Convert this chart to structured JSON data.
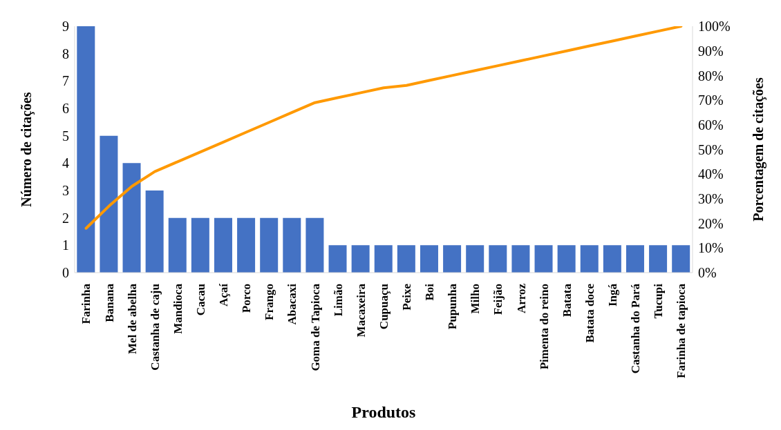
{
  "chart_data": {
    "type": "bar",
    "xlabel": "Produtos",
    "ylabel": "Número de citações",
    "y2label": "Porcentagem de citações",
    "categories": [
      "Farinha",
      "Banana",
      "Mel de abelha",
      "Castanha de caju",
      "Mandioca",
      "Cacau",
      "Açaí",
      "Porco",
      "Frango",
      "Abacaxi",
      "Goma de Tapioca",
      "Limão",
      "Macaxeira",
      "Cupuaçu",
      "Peixe",
      "Boi",
      "Pupunha",
      "Milho",
      "Feijão",
      "Arroz",
      "Pimenta do reino",
      "Batata",
      "Batata doce",
      "Ingá",
      "Castanha do Pará",
      "Tucupi",
      "Farinha de tapioca"
    ],
    "series": [
      {
        "color": "#4472c4",
        "values": [
          9,
          5,
          4,
          3,
          2,
          2,
          2,
          2,
          2,
          2,
          2,
          1,
          1,
          1,
          1,
          1,
          1,
          1,
          1,
          1,
          1,
          1,
          1,
          1,
          1,
          1,
          1
        ]
      },
      {
        "type": "line",
        "axis": "y2",
        "color": "#ff9900",
        "values": [
          18,
          27,
          35,
          41,
          45,
          49,
          53,
          57,
          61,
          65,
          69,
          71,
          73,
          75,
          76,
          78,
          80,
          82,
          84,
          86,
          88,
          90,
          92,
          94,
          96,
          98,
          100
        ]
      }
    ],
    "ylim": [
      0,
      9
    ],
    "yticks": [
      0,
      1,
      2,
      3,
      4,
      5,
      6,
      7,
      8,
      9
    ],
    "y2lim": [
      0,
      100
    ],
    "y2ticks": [
      {
        "value": 0,
        "label": "0%"
      },
      {
        "value": 10,
        "label": "10%"
      },
      {
        "value": 20,
        "label": "20%"
      },
      {
        "value": 30,
        "label": "30%"
      },
      {
        "value": 40,
        "label": "40%"
      },
      {
        "value": 50,
        "label": "50%"
      },
      {
        "value": 60,
        "label": "60%"
      },
      {
        "value": 70,
        "label": "70%"
      },
      {
        "value": 80,
        "label": "80%"
      },
      {
        "value": 90,
        "label": "90%"
      },
      {
        "value": 100,
        "label": "100%"
      }
    ],
    "grid": false,
    "legend": false,
    "marker": "none",
    "line_style": "solid"
  }
}
